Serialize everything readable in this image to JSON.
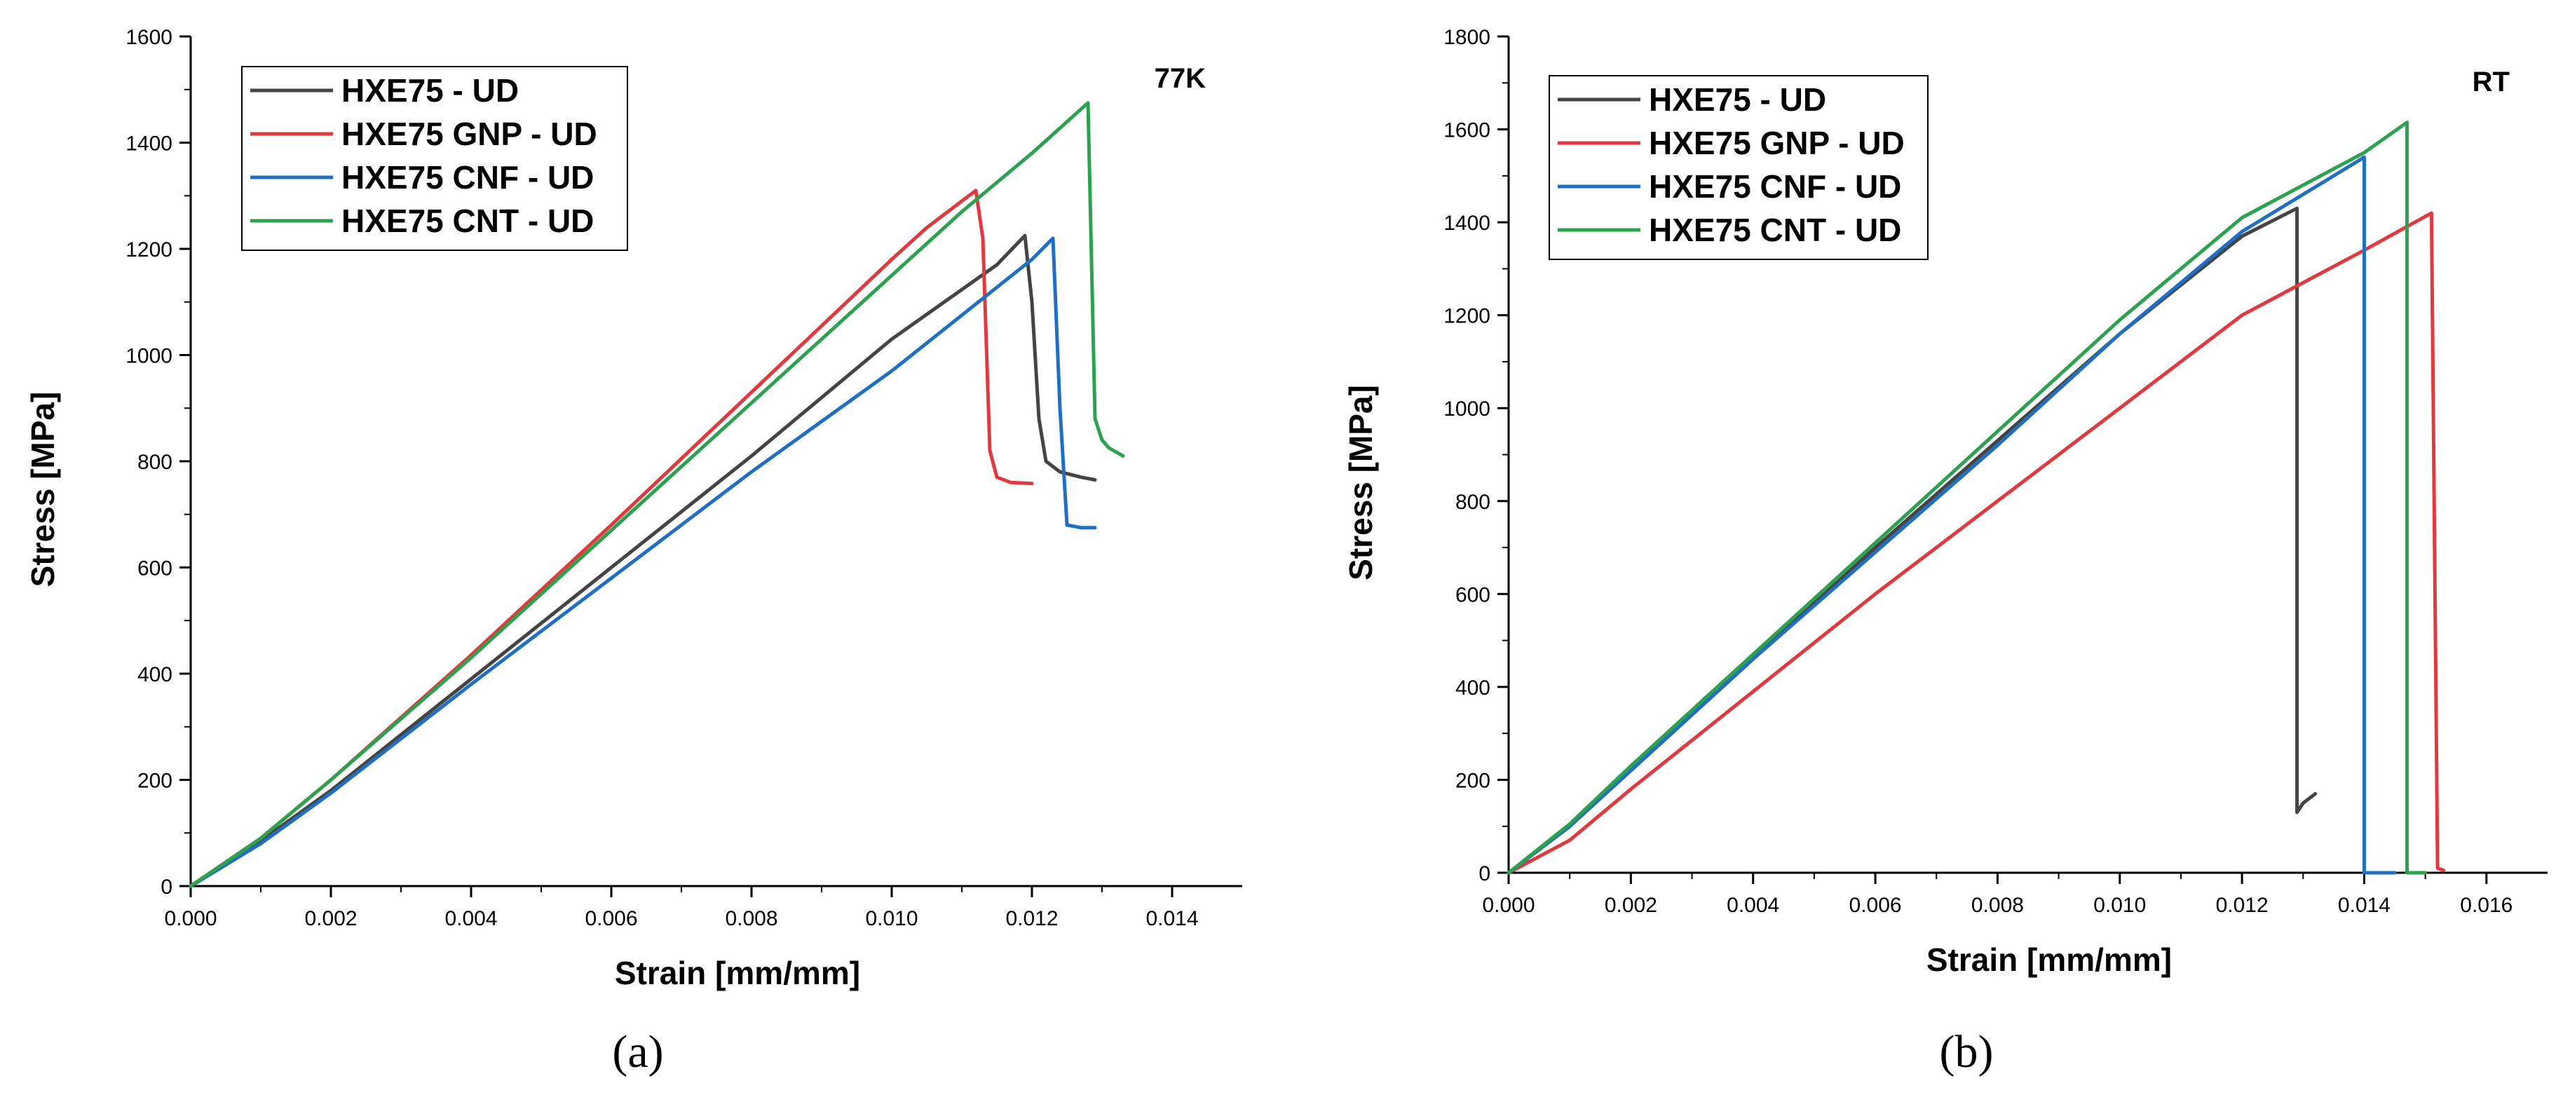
{
  "chart_data": [
    {
      "type": "line",
      "panel": "a",
      "caption": "(a)",
      "corner_label": "77K",
      "xlabel": "Strain [mm/mm]",
      "ylabel": "Stress [MPa]",
      "xlim": [
        0,
        0.015
      ],
      "ylim": [
        0,
        1600
      ],
      "xticks": [
        0,
        0.002,
        0.004,
        0.006,
        0.008,
        0.01,
        0.012,
        0.014
      ],
      "xtick_labels": [
        "0.000",
        "0.002",
        "0.004",
        "0.006",
        "0.008",
        "0.010",
        "0.012",
        "0.014"
      ],
      "yticks": [
        0,
        200,
        400,
        600,
        800,
        1000,
        1200,
        1400,
        1600
      ],
      "ytick_labels": [
        "0",
        "200",
        "400",
        "600",
        "800",
        "1000",
        "1200",
        "1400",
        "1600"
      ],
      "legend_position": "top-left",
      "series": [
        {
          "name": "HXE75 - UD",
          "color": "#444444",
          "x": [
            0,
            0.0005,
            0.001,
            0.002,
            0.004,
            0.006,
            0.008,
            0.01,
            0.0115,
            0.0119,
            0.012,
            0.0121,
            0.0122,
            0.0124,
            0.0127,
            0.0129
          ],
          "y": [
            0,
            40,
            85,
            180,
            390,
            600,
            810,
            1030,
            1170,
            1225,
            1100,
            880,
            800,
            780,
            770,
            765
          ]
        },
        {
          "name": "HXE75 GNP - UD",
          "color": "#e0393e",
          "x": [
            0,
            0.0005,
            0.001,
            0.002,
            0.004,
            0.006,
            0.008,
            0.01,
            0.0105,
            0.0112,
            0.0113,
            0.0114,
            0.0115,
            0.0117,
            0.012
          ],
          "y": [
            0,
            45,
            90,
            200,
            435,
            680,
            930,
            1180,
            1240,
            1310,
            1220,
            820,
            770,
            760,
            758
          ]
        },
        {
          "name": "HXE75 CNF - UD",
          "color": "#1f6fc4",
          "x": [
            0,
            0.0005,
            0.001,
            0.002,
            0.004,
            0.006,
            0.008,
            0.01,
            0.012,
            0.0123,
            0.0124,
            0.0125,
            0.0127,
            0.0129
          ],
          "y": [
            0,
            40,
            80,
            175,
            380,
            580,
            780,
            970,
            1180,
            1220,
            900,
            680,
            675,
            675
          ]
        },
        {
          "name": "HXE75 CNT - UD",
          "color": "#2ca24e",
          "x": [
            0,
            0.0005,
            0.001,
            0.002,
            0.004,
            0.006,
            0.008,
            0.01,
            0.011,
            0.012,
            0.0128,
            0.0129,
            0.013,
            0.0131,
            0.0133
          ],
          "y": [
            0,
            45,
            90,
            200,
            430,
            670,
            910,
            1150,
            1270,
            1380,
            1475,
            880,
            840,
            825,
            810
          ]
        }
      ]
    },
    {
      "type": "line",
      "panel": "b",
      "caption": "(b)",
      "corner_label": "RT",
      "xlabel": "Strain [mm/mm]",
      "ylabel": "Stress [MPa]",
      "xlim": [
        0,
        0.017
      ],
      "ylim": [
        0,
        1800
      ],
      "xticks": [
        0,
        0.002,
        0.004,
        0.006,
        0.008,
        0.01,
        0.012,
        0.014,
        0.016
      ],
      "xtick_labels": [
        "0.000",
        "0.002",
        "0.004",
        "0.006",
        "0.008",
        "0.010",
        "0.012",
        "0.014",
        "0.016"
      ],
      "yticks": [
        0,
        200,
        400,
        600,
        800,
        1000,
        1200,
        1400,
        1600,
        1800
      ],
      "ytick_labels": [
        "0",
        "200",
        "400",
        "600",
        "800",
        "1000",
        "1200",
        "1400",
        "1600",
        "1800"
      ],
      "legend_position": "top-left",
      "series": [
        {
          "name": "HXE75 - UD",
          "color": "#444444",
          "x": [
            0,
            0.001,
            0.002,
            0.004,
            0.006,
            0.008,
            0.01,
            0.012,
            0.0129,
            0.0129,
            0.013,
            0.0132
          ],
          "y": [
            0,
            100,
            220,
            460,
            700,
            930,
            1160,
            1370,
            1430,
            130,
            150,
            170
          ]
        },
        {
          "name": "HXE75 GNP - UD",
          "color": "#e0393e",
          "x": [
            0,
            0.001,
            0.002,
            0.004,
            0.006,
            0.008,
            0.01,
            0.012,
            0.014,
            0.0151,
            0.0152,
            0.0153
          ],
          "y": [
            0,
            70,
            180,
            390,
            600,
            800,
            1000,
            1200,
            1340,
            1420,
            10,
            5
          ]
        },
        {
          "name": "HXE75 CNF - UD",
          "color": "#1f6fc4",
          "x": [
            0,
            0.001,
            0.002,
            0.004,
            0.006,
            0.008,
            0.01,
            0.012,
            0.014,
            0.014,
            0.0145
          ],
          "y": [
            0,
            100,
            220,
            460,
            690,
            920,
            1160,
            1380,
            1540,
            0,
            0
          ]
        },
        {
          "name": "HXE75 CNT - UD",
          "color": "#2ca24e",
          "x": [
            0,
            0.001,
            0.002,
            0.004,
            0.006,
            0.008,
            0.01,
            0.012,
            0.014,
            0.0147,
            0.0147,
            0.015
          ],
          "y": [
            0,
            105,
            230,
            470,
            710,
            950,
            1190,
            1410,
            1550,
            1615,
            0,
            0
          ]
        }
      ]
    }
  ]
}
